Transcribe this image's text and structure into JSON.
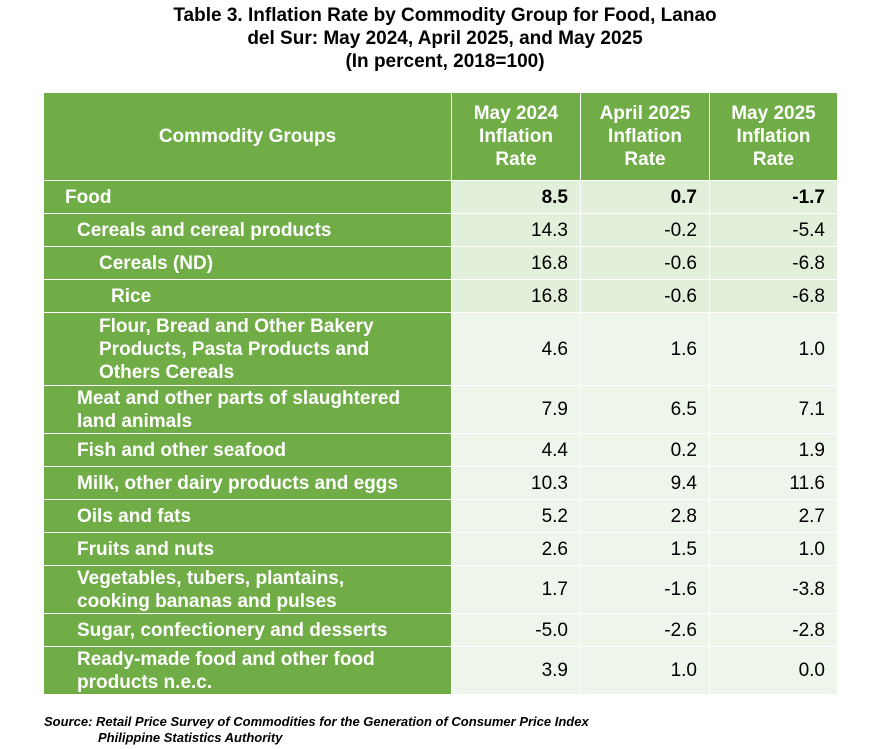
{
  "title": {
    "line1": "Table 3. Inflation Rate by Commodity Group for Food, Lanao",
    "line2": "del Sur: May 2024, April 2025, and May 2025",
    "line3": "(In percent, 2018=100)"
  },
  "table": {
    "headers": {
      "commodity": "Commodity Groups",
      "col1": [
        "May 2024",
        "Inflation",
        "Rate"
      ],
      "col2": [
        "April 2025",
        "Inflation",
        "Rate"
      ],
      "col3": [
        "May 2025",
        "Inflation",
        "Rate"
      ]
    },
    "rows": [
      {
        "name": [
          "Food"
        ],
        "may2024": "8.5",
        "apr2025": "0.7",
        "may2025": "-1.7"
      },
      {
        "name": [
          "Cereals and cereal products"
        ],
        "may2024": "14.3",
        "apr2025": "-0.2",
        "may2025": "-5.4"
      },
      {
        "name": [
          "Cereals (ND)"
        ],
        "may2024": "16.8",
        "apr2025": "-0.6",
        "may2025": "-6.8"
      },
      {
        "name": [
          "Rice"
        ],
        "may2024": "16.8",
        "apr2025": "-0.6",
        "may2025": "-6.8"
      },
      {
        "name": [
          "Flour, Bread and Other Bakery",
          "Products, Pasta Products and",
          "Others Cereals"
        ],
        "may2024": "4.6",
        "apr2025": "1.6",
        "may2025": "1.0"
      },
      {
        "name": [
          "Meat and other parts of slaughtered",
          "land animals"
        ],
        "may2024": "7.9",
        "apr2025": "6.5",
        "may2025": "7.1"
      },
      {
        "name": [
          "Fish and other seafood"
        ],
        "may2024": "4.4",
        "apr2025": "0.2",
        "may2025": "1.9"
      },
      {
        "name": [
          "Milk, other dairy products and eggs"
        ],
        "may2024": "10.3",
        "apr2025": "9.4",
        "may2025": "11.6"
      },
      {
        "name": [
          "Oils and fats"
        ],
        "may2024": "5.2",
        "apr2025": "2.8",
        "may2025": "2.7"
      },
      {
        "name": [
          "Fruits and nuts"
        ],
        "may2024": "2.6",
        "apr2025": "1.5",
        "may2025": "1.0"
      },
      {
        "name": [
          "Vegetables, tubers, plantains,",
          "cooking bananas and pulses"
        ],
        "may2024": "1.7",
        "apr2025": "-1.6",
        "may2025": "-3.8"
      },
      {
        "name": [
          "Sugar, confectionery and desserts"
        ],
        "may2024": "-5.0",
        "apr2025": "-2.6",
        "may2025": "-2.8"
      },
      {
        "name": [
          "Ready-made food and other food",
          "products n.e.c."
        ],
        "may2024": "3.9",
        "apr2025": "1.0",
        "may2025": "0.0"
      }
    ]
  },
  "source": {
    "line1": "Source: Retail Price Survey of Commodities for the Generation of Consumer Price Index",
    "line2": "Philippine Statistics Authority"
  },
  "colors": {
    "header_green": "#70ad47",
    "band_light": "#e2efda",
    "band_lighter": "#eef5ea"
  }
}
